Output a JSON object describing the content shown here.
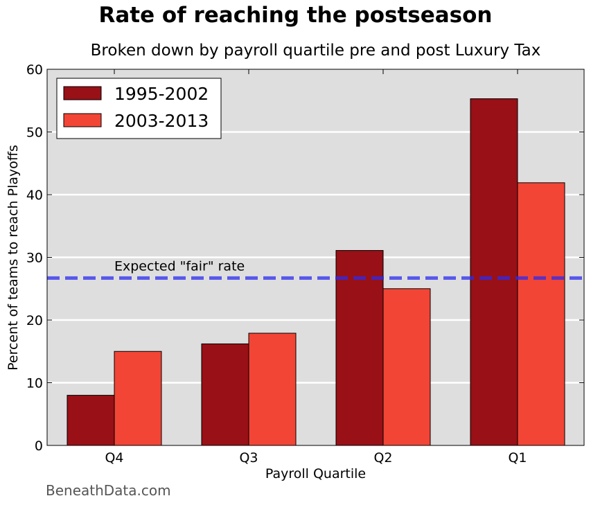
{
  "chart_data": {
    "type": "bar",
    "title": "Rate of reaching the postseason",
    "subtitle": "Broken down by payroll quartile pre and post Luxury Tax",
    "xlabel": "Payroll Quartile",
    "ylabel": "Percent of teams to reach Playoffs",
    "categories": [
      "Q4",
      "Q3",
      "Q2",
      "Q1"
    ],
    "series": [
      {
        "name": "1995-2002",
        "values": [
          8,
          16.2,
          31.1,
          55.3
        ],
        "color": "#991016"
      },
      {
        "name": "2003-2013",
        "values": [
          15,
          17.9,
          25,
          41.9
        ],
        "color": "#f24535"
      }
    ],
    "ylim": [
      0,
      60
    ],
    "yticks": [
      0,
      10,
      20,
      30,
      40,
      50,
      60
    ],
    "grid": true,
    "legend_position": "top-left",
    "reference_line": {
      "label": "Expected \"fair\" rate",
      "value": 26.7,
      "color": "#2b2bf0"
    },
    "background": "#dedede"
  },
  "source": "BeneathData.com"
}
